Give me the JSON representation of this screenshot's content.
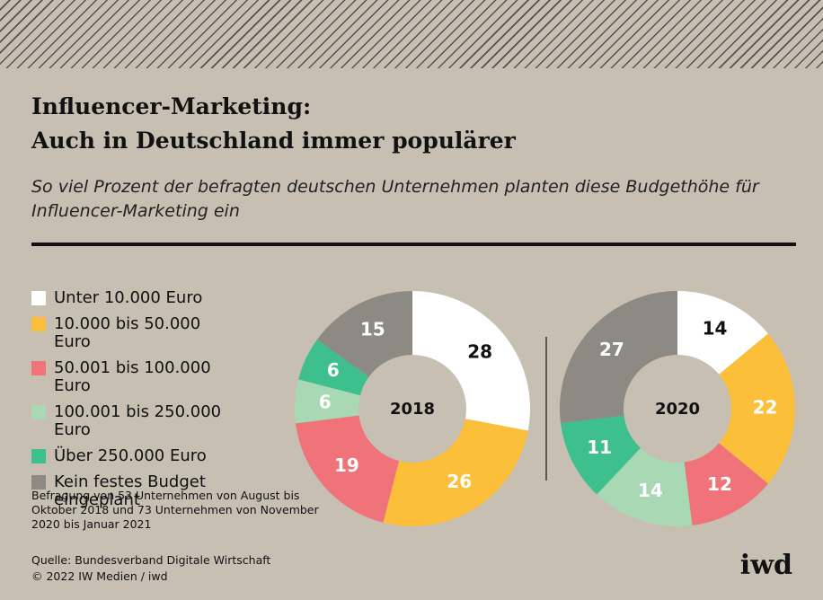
{
  "chart_data": {
    "type": "donut",
    "title": [
      "Influencer-Marketing:",
      "Auch in Deutschland immer populärer"
    ],
    "subtitle": "So viel Prozent der befragten deutschen Unternehmen planten diese Budgethöhe für Influencer-Marketing ein",
    "categories": [
      "Unter 10.000 Euro",
      "10.000 bis 50.000 Euro",
      "50.001 bis 100.000 Euro",
      "100.001 bis 250.000 Euro",
      "Über 250.000 Euro",
      "Kein festes Budget eingeplant"
    ],
    "colors": [
      "#ffffff",
      "#fbbf3a",
      "#f0737a",
      "#a8d8b4",
      "#3dbf8e",
      "#8c8a82"
    ],
    "series": [
      {
        "name": "2018",
        "values": [
          28,
          26,
          19,
          6,
          6,
          15
        ]
      },
      {
        "name": "2020",
        "values": [
          14,
          22,
          12,
          14,
          11,
          27
        ]
      }
    ],
    "note": "Befragung von 53 Unternehmen von August bis Oktober 2018 und 73 Unternehmen von November 2020 bis Januar 2021",
    "source": [
      "Quelle: Bundesverband Digitale Wirtschaft",
      "© 2022 IW Medien / iwd"
    ],
    "logo": "iwd"
  }
}
